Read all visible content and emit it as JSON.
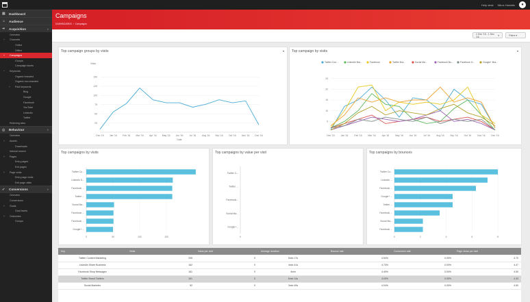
{
  "app": {
    "title": "Campaigns"
  },
  "topbar": {
    "link1": "Help desk",
    "user_name": "Nikos Hasiotis",
    "avatar": "user-avatar-icon"
  },
  "sidebar": {
    "sections": [
      {
        "label": "Dashboard",
        "icon": "dashboard-icon",
        "items": []
      },
      {
        "label": "Audience",
        "icon": "audience-icon",
        "items": []
      },
      {
        "label": "Acquisition",
        "icon": "acquisition-icon",
        "items": [
          {
            "label": "Overview",
            "indent": 1
          },
          {
            "label": "Channels",
            "indent": 1,
            "toggle": "+"
          },
          {
            "label": "Online",
            "indent": 2
          },
          {
            "label": "Offline",
            "indent": 2
          },
          {
            "label": "Campaigns",
            "indent": 1,
            "toggle": "+",
            "active": true
          },
          {
            "label": "Groups",
            "indent": 2
          },
          {
            "label": "Campaign facets",
            "indent": 2
          },
          {
            "label": "Keywords",
            "indent": 1,
            "toggle": "+"
          },
          {
            "label": "Organic branded",
            "indent": 2
          },
          {
            "label": "Organic non-branded",
            "indent": 2
          },
          {
            "label": "Paid keywords",
            "indent": 2,
            "toggle": "+"
          },
          {
            "label": "Bing",
            "indent": 3
          },
          {
            "label": "Google",
            "indent": 3
          },
          {
            "label": "Facebook",
            "indent": 3
          },
          {
            "label": "YouTube",
            "indent": 3
          },
          {
            "label": "LinkedIn",
            "indent": 3
          },
          {
            "label": "Twitter",
            "indent": 3
          },
          {
            "label": "Referring sites",
            "indent": 1
          }
        ]
      },
      {
        "label": "Behaviour",
        "icon": "behaviour-icon",
        "items": [
          {
            "label": "Overview",
            "indent": 1
          },
          {
            "label": "Assets",
            "indent": 1,
            "toggle": "+"
          },
          {
            "label": "Downloads",
            "indent": 2
          },
          {
            "label": "Internal search",
            "indent": 1
          },
          {
            "label": "Pages",
            "indent": 1,
            "toggle": "+"
          },
          {
            "label": "Entry pages",
            "indent": 2
          },
          {
            "label": "Exit pages",
            "indent": 2
          },
          {
            "label": "Page visits",
            "indent": 1,
            "toggle": "+"
          },
          {
            "label": "Entry page visits",
            "indent": 2
          },
          {
            "label": "Exit page visits",
            "indent": 2
          }
        ]
      },
      {
        "label": "Conversions",
        "icon": "conversions-icon",
        "items": [
          {
            "label": "Overview",
            "indent": 1
          },
          {
            "label": "Conversions",
            "indent": 1
          },
          {
            "label": "Goals",
            "indent": 1,
            "toggle": "+"
          },
          {
            "label": "Goal facets",
            "indent": 2
          },
          {
            "label": "Outcomes",
            "indent": 1,
            "toggle": "+"
          },
          {
            "label": "Groups",
            "indent": 2
          }
        ]
      }
    ]
  },
  "header": {
    "title": "Campaigns",
    "breadcrumb": [
      "DASHBOARDS",
      "Campaigns"
    ]
  },
  "toolbar": {
    "date_range": "1 Dec '15 - 1 Dec '16",
    "filters_label": "Filters"
  },
  "colors": {
    "accent": "#d9272e",
    "bar": "#5bc0de",
    "line": "#4aabd6"
  },
  "charts": {
    "groups": {
      "title": "Top campaign groups by visits"
    },
    "campaigns": {
      "title": "Top campaign by visits"
    },
    "visits": {
      "title": "Top campaigns by visits"
    },
    "value": {
      "title": "Top campaigns by value per visit"
    },
    "bounces": {
      "title": "Top campaigns by bounces"
    }
  },
  "chart_data": [
    {
      "type": "line",
      "title": "Top campaign groups by visits",
      "ylabel": "Visits",
      "xlabel": "Date",
      "categories": [
        "Dec '15",
        "Jan '16",
        "Feb '16",
        "Mar '16",
        "Apr '16",
        "May '16",
        "Jun '16",
        "Jul '16",
        "Aug '16",
        "Sep '16",
        "Oct '16",
        "Nov '16",
        "Dec '16"
      ],
      "ylim": [
        0,
        175
      ],
      "yticks": [
        25,
        50,
        75,
        100,
        125,
        150
      ],
      "series": [
        {
          "values": [
            8,
            55,
            78,
            120,
            88,
            80,
            80,
            68,
            76,
            88,
            80,
            85,
            20
          ]
        }
      ]
    },
    {
      "type": "line",
      "title": "Top campaign by visits",
      "categories": [
        "Dec '15",
        "Jan '16",
        "Feb '16",
        "Mar '16",
        "Apr '16",
        "May '16",
        "Jun '16",
        "Jul '16",
        "Aug '16",
        "Sep '16",
        "Oct '16",
        "Nov '16",
        "Dec '16"
      ],
      "ylim": [
        0,
        30
      ],
      "yticks": [
        5,
        10,
        15,
        20,
        25
      ],
      "series": [
        {
          "name": "Twitter Con...",
          "color": "#4aabd6",
          "values": [
            1,
            12,
            15,
            21,
            15,
            7,
            16,
            15,
            10,
            20,
            15,
            13,
            2
          ]
        },
        {
          "name": "LinkedIn Bra...",
          "color": "#5cb85c",
          "values": [
            2,
            5,
            10,
            18,
            13,
            12,
            6,
            4,
            5,
            11,
            15,
            8,
            1
          ]
        },
        {
          "name": "Facebook",
          "color": "#e8c81c",
          "values": [
            2,
            10,
            21,
            22,
            10,
            14,
            13,
            14,
            13,
            15,
            21,
            8,
            4
          ]
        },
        {
          "name": "Twitter Bra...",
          "color": "#f0a030",
          "values": [
            3,
            8,
            16,
            14,
            16,
            14,
            15,
            15,
            21,
            14,
            16,
            14,
            2
          ]
        },
        {
          "name": "Social Ma...",
          "color": "#d9534f",
          "values": [
            2,
            4,
            6,
            8,
            4,
            5,
            6,
            7,
            5,
            6,
            7,
            5,
            1
          ]
        },
        {
          "name": "Facebook Bu...",
          "color": "#9b5fb5",
          "values": [
            1,
            3,
            5,
            7,
            6,
            5,
            6,
            8,
            10,
            5,
            6,
            4,
            1
          ]
        },
        {
          "name": "Facebook G...",
          "color": "#7f8c8d",
          "values": [
            2,
            3,
            6,
            5,
            7,
            6,
            5,
            7,
            4,
            6,
            5,
            6,
            1
          ]
        },
        {
          "name": "Google+ Bra...",
          "color": "#b5a02a",
          "values": [
            1,
            4,
            9,
            12,
            8,
            10,
            9,
            8,
            11,
            13,
            9,
            7,
            3
          ]
        }
      ]
    },
    {
      "type": "bar",
      "orientation": "horizontal",
      "title": "Top campaigns by visits",
      "categories": [
        "Twitter Co...",
        "LinkedIn S...",
        "Facebook ...",
        "Twitter ...",
        "Social Ma...",
        "Facebook ...",
        "Facebook ...",
        "Google+ ..."
      ],
      "values": [
        205,
        162,
        161,
        161,
        52,
        51,
        51,
        50
      ],
      "xlim": [
        0,
        200
      ],
      "xticks": [
        0,
        50,
        100,
        150
      ]
    },
    {
      "type": "bar",
      "orientation": "horizontal",
      "title": "Top campaigns by value per visit",
      "categories": [
        "Twitter C...",
        "Twitter ...",
        "Facebook...",
        "Social Ma...",
        "Google+..."
      ],
      "values": [
        0,
        0,
        0,
        0,
        0
      ],
      "xlim": [
        0,
        1
      ],
      "xticks": [
        0
      ]
    },
    {
      "type": "bar",
      "orientation": "horizontal",
      "title": "Top campaigns by bounces",
      "categories": [
        "Twitter Co...",
        "LinkedIn ...",
        "Facebook ...",
        "Google+ ...",
        "Twitter ...",
        "Facebook ...",
        "Social Ma...",
        "Facebook ..."
      ],
      "values": [
        8,
        7.2,
        6.3,
        4.5,
        4.5,
        3.5,
        2.2,
        2.2
      ],
      "xlim": [
        0,
        9
      ],
      "xticks": [
        0,
        2,
        4,
        6,
        8
      ]
    }
  ],
  "table": {
    "columns": [
      "Key",
      "Visits",
      "Value per visit",
      "Average duration",
      "Bounce rate",
      "Conversion rate",
      "Page views per visit"
    ],
    "rows": [
      {
        "cells": [
          "Twitter Content Marketing",
          "205",
          "0",
          "5min 17s",
          "4.54%",
          "0.00%",
          "4.70"
        ]
      },
      {
        "cells": [
          "LinkedIn Share Business",
          "162",
          "0",
          "4min 41s",
          "4.73%",
          "0.00%",
          "4.47"
        ]
      },
      {
        "cells": [
          "Facebook Shop Messages",
          "161",
          "0",
          "4min",
          "4.49%",
          "0.00%",
          "4.50"
        ]
      },
      {
        "cells": [
          "Twitter Brand Twitters",
          "161",
          "0",
          "5min 14s",
          "3.03%",
          "0.00%",
          "4.43"
        ],
        "selected": true
      },
      {
        "cells": [
          "Social Marketer",
          "52",
          "0",
          "3min 49s",
          "4.04%",
          "0.00%",
          "4.50"
        ]
      }
    ]
  }
}
